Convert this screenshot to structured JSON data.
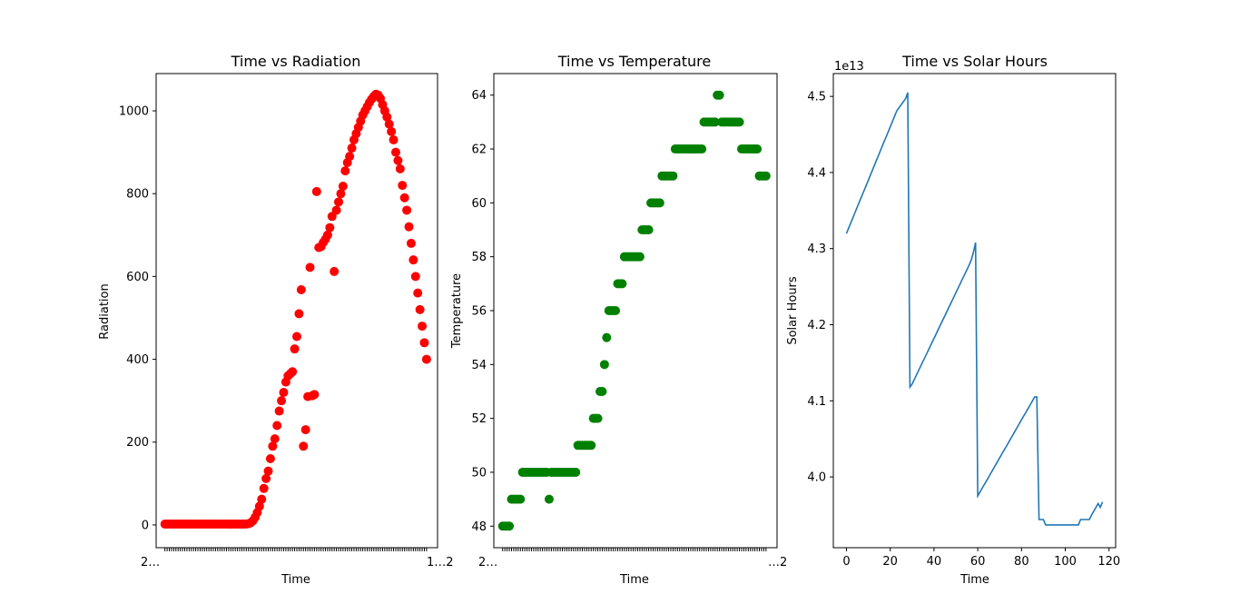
{
  "chart_data": [
    {
      "type": "scatter",
      "title": "Time vs Radiation",
      "xlabel": "Time",
      "ylabel": "Radiation",
      "color": "#ff0000",
      "xlim": [
        -4,
        124
      ],
      "ylim": [
        -55,
        1090
      ],
      "yticks": [
        0,
        200,
        400,
        600,
        800,
        1000
      ],
      "n_points": 120,
      "x_tick_labels_overlapped": "2…",
      "x_tick_labels_end": "1…2",
      "x": [
        0,
        1,
        2,
        3,
        4,
        5,
        6,
        7,
        8,
        9,
        10,
        11,
        12,
        13,
        14,
        15,
        16,
        17,
        18,
        19,
        20,
        21,
        22,
        23,
        24,
        25,
        26,
        27,
        28,
        29,
        30,
        31,
        32,
        33,
        34,
        35,
        36,
        37,
        38,
        39,
        40,
        41,
        42,
        43,
        44,
        45,
        46,
        47,
        48,
        49,
        50,
        51,
        52,
        53,
        54,
        55,
        56,
        57,
        58,
        59,
        60,
        61,
        62,
        63,
        64,
        65,
        66,
        67,
        68,
        69,
        70,
        71,
        72,
        73,
        74,
        75,
        76,
        77,
        78,
        79,
        80,
        81,
        82,
        83,
        84,
        85,
        86,
        87,
        88,
        89,
        90,
        91,
        92,
        93,
        94,
        95,
        96,
        97,
        98,
        99,
        100,
        101,
        102,
        103,
        104,
        105,
        106,
        107,
        108,
        109,
        110,
        111,
        112,
        113,
        114,
        115,
        116,
        117,
        118,
        119
      ],
      "y": [
        2,
        2,
        2,
        2,
        2,
        2,
        2,
        2,
        2,
        2,
        2,
        2,
        2,
        2,
        2,
        2,
        2,
        2,
        2,
        2,
        2,
        2,
        2,
        2,
        2,
        2,
        2,
        2,
        2,
        2,
        2,
        2,
        2,
        2,
        2,
        2,
        2,
        2,
        3,
        5,
        10,
        18,
        30,
        45,
        62,
        88,
        112,
        130,
        160,
        190,
        208,
        240,
        275,
        300,
        320,
        345,
        360,
        365,
        370,
        425,
        455,
        510,
        568,
        190,
        230,
        310,
        622,
        312,
        315,
        805,
        670,
        672,
        682,
        690,
        700,
        718,
        745,
        612,
        760,
        780,
        800,
        818,
        855,
        875,
        890,
        910,
        930,
        945,
        960,
        975,
        990,
        1000,
        1010,
        1020,
        1028,
        1035,
        1040,
        1038,
        1030,
        1015,
        1000,
        985,
        968,
        950,
        930,
        900,
        880,
        860,
        820,
        790,
        760,
        720,
        680,
        640,
        600,
        560,
        520,
        480,
        440,
        400
      ]
    },
    {
      "type": "scatter",
      "title": "Time vs Temperature",
      "xlabel": "Time",
      "ylabel": "Temperature",
      "color": "#008000",
      "xlim": [
        -4,
        124
      ],
      "ylim": [
        47.2,
        64.8
      ],
      "yticks": [
        48,
        50,
        52,
        54,
        56,
        58,
        60,
        62,
        64
      ],
      "n_points": 120,
      "x_tick_labels_overlapped": "2…",
      "x_tick_labels_end": "…2",
      "x": [
        0,
        1,
        2,
        3,
        4,
        5,
        6,
        7,
        8,
        9,
        10,
        11,
        12,
        13,
        14,
        15,
        16,
        17,
        18,
        19,
        20,
        21,
        22,
        23,
        24,
        25,
        26,
        27,
        28,
        29,
        30,
        31,
        32,
        33,
        34,
        35,
        36,
        37,
        38,
        39,
        40,
        41,
        42,
        43,
        44,
        45,
        46,
        47,
        48,
        49,
        50,
        51,
        52,
        53,
        54,
        55,
        56,
        57,
        58,
        59,
        60,
        61,
        62,
        63,
        64,
        65,
        66,
        67,
        68,
        69,
        70,
        71,
        72,
        73,
        74,
        75,
        76,
        77,
        78,
        79,
        80,
        81,
        82,
        83,
        84,
        85,
        86,
        87,
        88,
        89,
        90,
        91,
        92,
        93,
        94,
        95,
        96,
        97,
        98,
        99,
        100,
        101,
        102,
        103,
        104,
        105,
        106,
        107,
        108,
        109,
        110,
        111,
        112,
        113,
        114,
        115,
        116,
        117,
        118,
        119
      ],
      "y": [
        48,
        48,
        48,
        48,
        49,
        49,
        49,
        49,
        49,
        50,
        50,
        50,
        50,
        50,
        50,
        50,
        50,
        50,
        50,
        50,
        50,
        49,
        50,
        50,
        50,
        50,
        50,
        50,
        50,
        50,
        50,
        50,
        50,
        50,
        51,
        51,
        51,
        51,
        51,
        51,
        51,
        52,
        52,
        52,
        53,
        53,
        54,
        55,
        56,
        56,
        56,
        56,
        57,
        57,
        57,
        58,
        58,
        58,
        58,
        58,
        58,
        58,
        58,
        59,
        59,
        59,
        59,
        60,
        60,
        60,
        60,
        60,
        61,
        61,
        61,
        61,
        61,
        61,
        62,
        62,
        62,
        62,
        62,
        62,
        62,
        62,
        62,
        62,
        62,
        62,
        62,
        63,
        63,
        63,
        63,
        63,
        63,
        64,
        64,
        63,
        63,
        63,
        63,
        63,
        63,
        63,
        63,
        63,
        62,
        62,
        62,
        62,
        62,
        62,
        62,
        62,
        61,
        61,
        61,
        61
      ]
    },
    {
      "type": "line",
      "title": "Time vs Solar Hours",
      "xlabel": "Time",
      "ylabel": "Solar Hours",
      "offset_label": "1e13",
      "color": "#1f77b4",
      "xlim": [
        -6,
        123
      ],
      "ylim": [
        3.907,
        4.53
      ],
      "xticks": [
        0,
        20,
        40,
        60,
        80,
        100,
        120
      ],
      "yticks": [
        4.0,
        4.1,
        4.2,
        4.3,
        4.4,
        4.5
      ],
      "x": [
        0,
        1,
        2,
        3,
        4,
        5,
        6,
        7,
        8,
        9,
        10,
        11,
        12,
        13,
        14,
        15,
        16,
        17,
        18,
        19,
        20,
        21,
        22,
        23,
        24,
        25,
        26,
        27,
        28,
        29,
        30,
        31,
        32,
        33,
        34,
        35,
        36,
        37,
        38,
        39,
        40,
        41,
        42,
        43,
        44,
        45,
        46,
        47,
        48,
        49,
        50,
        51,
        52,
        53,
        54,
        55,
        56,
        57,
        58,
        59,
        60,
        61,
        62,
        63,
        64,
        65,
        66,
        67,
        68,
        69,
        70,
        71,
        72,
        73,
        74,
        75,
        76,
        77,
        78,
        79,
        80,
        81,
        82,
        83,
        84,
        85,
        86,
        87,
        88,
        89,
        90,
        91,
        92,
        93,
        94,
        95,
        96,
        97,
        98,
        99,
        100,
        101,
        102,
        103,
        104,
        105,
        106,
        107,
        108,
        109,
        110,
        111,
        112,
        113,
        114,
        115,
        116,
        117
      ],
      "y": [
        4.32,
        4.327,
        4.334,
        4.341,
        4.348,
        4.355,
        4.362,
        4.369,
        4.376,
        4.383,
        4.39,
        4.397,
        4.404,
        4.411,
        4.418,
        4.425,
        4.432,
        4.439,
        4.446,
        4.453,
        4.46,
        4.467,
        4.474,
        4.481,
        4.485,
        4.489,
        4.493,
        4.497,
        4.505,
        4.118,
        4.122,
        4.128,
        4.134,
        4.14,
        4.146,
        4.152,
        4.158,
        4.164,
        4.17,
        4.176,
        4.182,
        4.188,
        4.194,
        4.2,
        4.206,
        4.212,
        4.218,
        4.224,
        4.23,
        4.236,
        4.242,
        4.248,
        4.254,
        4.26,
        4.266,
        4.272,
        4.278,
        4.285,
        4.295,
        4.308,
        3.975,
        3.98,
        3.985,
        3.99,
        3.995,
        4.0,
        4.005,
        4.01,
        4.015,
        4.02,
        4.025,
        4.03,
        4.035,
        4.04,
        4.045,
        4.05,
        4.055,
        4.06,
        4.065,
        4.07,
        4.075,
        4.08,
        4.085,
        4.09,
        4.095,
        4.1,
        4.105,
        4.105,
        3.944,
        3.944,
        3.944,
        3.937,
        3.937,
        3.937,
        3.937,
        3.937,
        3.937,
        3.937,
        3.937,
        3.937,
        3.937,
        3.937,
        3.937,
        3.937,
        3.937,
        3.937,
        3.937,
        3.944,
        3.944,
        3.944,
        3.944,
        3.944,
        3.95,
        3.955,
        3.96,
        3.965,
        3.96,
        3.967
      ]
    }
  ]
}
